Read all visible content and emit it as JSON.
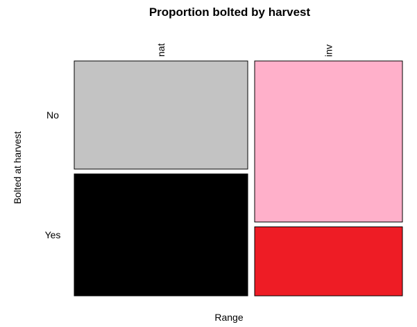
{
  "chart_data": {
    "type": "mosaic",
    "title": "Proportion bolted by harvest",
    "xlabel": "Range",
    "ylabel": "Bolted at harvest",
    "x_categories": [
      "nat",
      "inv"
    ],
    "y_categories": [
      "No",
      "Yes"
    ],
    "column_proportions": [
      0.54,
      0.46
    ],
    "cells": [
      {
        "x": "nat",
        "y": "No",
        "proportion": 0.47,
        "color": "#C3C3C3"
      },
      {
        "x": "nat",
        "y": "Yes",
        "proportion": 0.53,
        "color": "#000000"
      },
      {
        "x": "inv",
        "y": "No",
        "proportion": 0.7,
        "color": "#FFB0CA"
      },
      {
        "x": "inv",
        "y": "Yes",
        "proportion": 0.3,
        "color": "#EE1C25"
      }
    ]
  }
}
